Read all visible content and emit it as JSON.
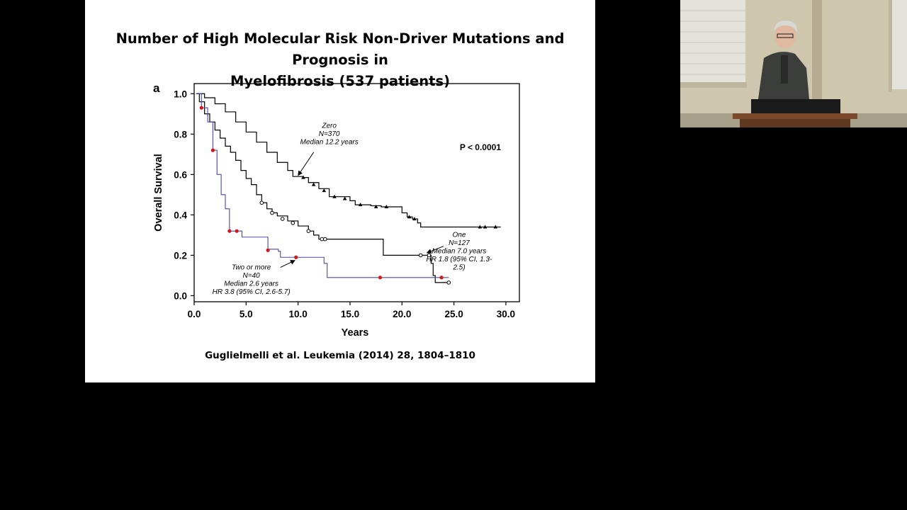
{
  "slide": {
    "title_line1": "Number of High Molecular Risk Non-Driver Mutations and Prognosis in",
    "title_line2": "Myelofibrosis (537 patients)",
    "citation": "Guglielmelli et al. Leukemia (2014) 28, 1804–1810"
  },
  "chart_data": {
    "type": "line",
    "panel_label": "a",
    "title": "",
    "xlabel": "Years",
    "ylabel": "Overall Survival",
    "xlim": [
      0,
      31.3
    ],
    "ylim": [
      -0.03,
      1.05
    ],
    "xticks": [
      "0.0",
      "5.0",
      "10.0",
      "15.0",
      "20.0",
      "25.0",
      "30.0"
    ],
    "xtick_values": [
      0,
      5,
      10,
      15,
      20,
      25,
      30
    ],
    "yticks": [
      "0.0",
      "0.2",
      "0.4",
      "0.6",
      "0.8",
      "1.0"
    ],
    "ytick_values": [
      0,
      0.2,
      0.4,
      0.6,
      0.8,
      1.0
    ],
    "grid": false,
    "p_value": "P < 0.0001",
    "series": [
      {
        "name": "Zero",
        "color": "#000000",
        "marker": "triangle",
        "steps": [
          [
            0.2,
            1.0
          ],
          [
            1,
            0.98
          ],
          [
            2,
            0.95
          ],
          [
            3,
            0.91
          ],
          [
            4,
            0.86
          ],
          [
            5,
            0.81
          ],
          [
            6,
            0.76
          ],
          [
            7,
            0.71
          ],
          [
            8,
            0.66
          ],
          [
            9,
            0.62
          ],
          [
            9.5,
            0.59
          ],
          [
            10.5,
            0.585
          ],
          [
            11,
            0.56
          ],
          [
            12,
            0.53
          ],
          [
            13,
            0.49
          ],
          [
            15,
            0.47
          ],
          [
            15.5,
            0.45
          ],
          [
            17,
            0.445
          ],
          [
            18,
            0.44
          ],
          [
            20,
            0.41
          ],
          [
            20.5,
            0.39
          ],
          [
            21,
            0.38
          ],
          [
            21.5,
            0.36
          ],
          [
            21.8,
            0.34
          ],
          [
            29.5,
            0.34
          ]
        ],
        "censors": [
          [
            10.5,
            0.585
          ],
          [
            11.5,
            0.55
          ],
          [
            12.5,
            0.52
          ],
          [
            13.5,
            0.49
          ],
          [
            14.5,
            0.48
          ],
          [
            16,
            0.45
          ],
          [
            17.5,
            0.44
          ],
          [
            18.5,
            0.44
          ],
          [
            20.7,
            0.39
          ],
          [
            21.2,
            0.38
          ],
          [
            27.5,
            0.34
          ],
          [
            28,
            0.34
          ],
          [
            29,
            0.34
          ]
        ],
        "annotation": {
          "lines": [
            "Zero",
            "N=370",
            "Median 12.2  years"
          ],
          "at": [
            13,
            0.83
          ],
          "arrow_from": [
            11.5,
            0.71
          ],
          "arrow_to": [
            10,
            0.595
          ]
        }
      },
      {
        "name": "One",
        "color": "#000000",
        "marker": "circle",
        "steps": [
          [
            0.2,
            1.0
          ],
          [
            0.5,
            0.96
          ],
          [
            1,
            0.9
          ],
          [
            1.5,
            0.86
          ],
          [
            2,
            0.82
          ],
          [
            2.5,
            0.78
          ],
          [
            3,
            0.74
          ],
          [
            3.5,
            0.71
          ],
          [
            4,
            0.67
          ],
          [
            4.5,
            0.62
          ],
          [
            5,
            0.58
          ],
          [
            5.5,
            0.55
          ],
          [
            6,
            0.5
          ],
          [
            6.5,
            0.46
          ],
          [
            7,
            0.43
          ],
          [
            7.5,
            0.41
          ],
          [
            8,
            0.395
          ],
          [
            9,
            0.37
          ],
          [
            10,
            0.345
          ],
          [
            11,
            0.32
          ],
          [
            11.5,
            0.3
          ],
          [
            12,
            0.28
          ],
          [
            18,
            0.28
          ],
          [
            18.2,
            0.2
          ],
          [
            22.5,
            0.2
          ],
          [
            22.8,
            0.16
          ],
          [
            23,
            0.1
          ],
          [
            23.2,
            0.065
          ],
          [
            24.5,
            0.065
          ]
        ],
        "censors": [
          [
            6.5,
            0.46
          ],
          [
            7.5,
            0.41
          ],
          [
            8.5,
            0.38
          ],
          [
            9.5,
            0.36
          ],
          [
            11,
            0.32
          ],
          [
            12.3,
            0.28
          ],
          [
            12.6,
            0.28
          ],
          [
            21.8,
            0.2
          ],
          [
            22.6,
            0.2
          ],
          [
            24.5,
            0.065
          ]
        ],
        "annotation": {
          "lines": [
            "One",
            "N=127",
            "Median 7.0 years",
            "HR 1.8 (95% CI, 1.3-",
            "2.5)"
          ],
          "at": [
            25.5,
            0.29
          ],
          "arrow_from": [
            24,
            0.245
          ],
          "arrow_to": [
            22.4,
            0.212
          ]
        }
      },
      {
        "name": "Two or more",
        "color": "#4a4aa8",
        "marker": "red-dot",
        "steps": [
          [
            0.2,
            1.0
          ],
          [
            0.7,
            0.93
          ],
          [
            1.3,
            0.86
          ],
          [
            1.8,
            0.72
          ],
          [
            2.2,
            0.6
          ],
          [
            2.6,
            0.5
          ],
          [
            3,
            0.43
          ],
          [
            3.4,
            0.32
          ],
          [
            4.4,
            0.32
          ],
          [
            4.6,
            0.29
          ],
          [
            6.9,
            0.29
          ],
          [
            7.1,
            0.23
          ],
          [
            8.1,
            0.22
          ],
          [
            8.3,
            0.19
          ],
          [
            12.2,
            0.19
          ],
          [
            12.5,
            0.16
          ],
          [
            12.8,
            0.09
          ],
          [
            23,
            0.09
          ],
          [
            23.2,
            0.09
          ],
          [
            24.5,
            0.09
          ]
        ],
        "censors": [
          [
            0.7,
            0.93
          ],
          [
            1.8,
            0.72
          ],
          [
            3.4,
            0.32
          ],
          [
            4.1,
            0.32
          ],
          [
            7.1,
            0.225
          ],
          [
            9.8,
            0.19
          ],
          [
            17.9,
            0.09
          ],
          [
            23.8,
            0.09
          ]
        ],
        "annotation": {
          "lines": [
            "Two or more",
            "N=40",
            "Median 2.6 years",
            "HR 3.8 (95% CI, 2.6-5.7)"
          ],
          "at": [
            5.5,
            0.13
          ],
          "arrow_from": [
            8.3,
            0.14
          ],
          "arrow_to": [
            9.7,
            0.175
          ]
        }
      }
    ]
  },
  "video_inset": {
    "wall_color": "#c9bfa6",
    "window_color": "#e6e6e0",
    "podium_color": "#7a4a2a"
  }
}
